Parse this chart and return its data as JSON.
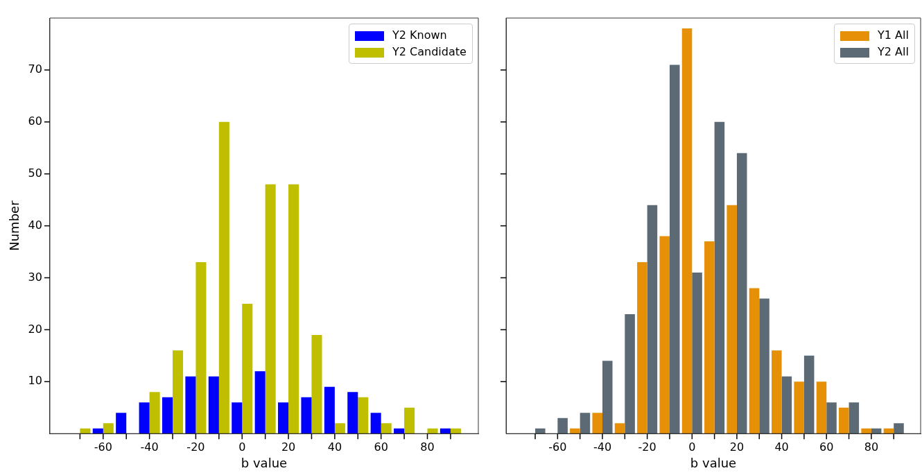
{
  "chart_data": [
    {
      "type": "histogram",
      "xlabel": "b value",
      "ylabel": "Number",
      "bins": [
        -75,
        -65,
        -55,
        -45,
        -35,
        -25,
        -15,
        -5,
        5,
        15,
        25,
        35,
        45,
        55,
        65,
        75,
        85,
        95
      ],
      "series": [
        {
          "name": "Y2 Known",
          "color": "#0000ff",
          "values": [
            0,
            1,
            4,
            6,
            7,
            11,
            11,
            6,
            12,
            6,
            7,
            9,
            8,
            4,
            1,
            0,
            1
          ]
        },
        {
          "name": "Y2 Candidate",
          "color": "#bfbf00",
          "values": [
            1,
            2,
            0,
            8,
            16,
            33,
            60,
            25,
            48,
            48,
            19,
            2,
            7,
            2,
            5,
            1,
            1
          ]
        }
      ],
      "xlim": [
        -83,
        102
      ],
      "ylim": [
        0,
        80
      ],
      "xticks": [
        {
          "value": -70,
          "label": null
        },
        -60,
        {
          "value": -50,
          "label": null
        },
        -40,
        {
          "value": -30,
          "label": null
        },
        -20,
        {
          "value": -10,
          "label": null
        },
        0,
        {
          "value": 10,
          "label": null
        },
        20,
        {
          "value": 30,
          "label": null
        },
        40,
        {
          "value": 50,
          "label": null
        },
        60,
        {
          "value": 70,
          "label": null
        },
        80,
        {
          "value": 90,
          "label": null
        }
      ],
      "yticks": [
        10,
        20,
        30,
        40,
        50,
        60,
        70
      ],
      "legend": "top right"
    },
    {
      "type": "histogram",
      "xlabel": "b value",
      "bins": [
        -75,
        -65,
        -55,
        -45,
        -35,
        -25,
        -15,
        -5,
        5,
        15,
        25,
        35,
        45,
        55,
        65,
        75,
        85,
        95
      ],
      "series": [
        {
          "name": "Y1 All",
          "color": "#e69008",
          "values": [
            0,
            0,
            1,
            4,
            2,
            33,
            38,
            78,
            37,
            44,
            28,
            16,
            10,
            10,
            5,
            1,
            1
          ]
        },
        {
          "name": "Y2 All",
          "color": "#5b6a74",
          "values": [
            1,
            3,
            4,
            14,
            23,
            44,
            71,
            31,
            60,
            54,
            26,
            11,
            15,
            6,
            6,
            1,
            2
          ]
        }
      ],
      "xlim": [
        -83,
        102
      ],
      "ylim": [
        0,
        80
      ],
      "xticks": [
        {
          "value": -70,
          "label": null
        },
        -60,
        {
          "value": -50,
          "label": null
        },
        -40,
        {
          "value": -30,
          "label": null
        },
        -20,
        {
          "value": -10,
          "label": null
        },
        0,
        {
          "value": 10,
          "label": null
        },
        20,
        {
          "value": 30,
          "label": null
        },
        40,
        {
          "value": 50,
          "label": null
        },
        60,
        {
          "value": 70,
          "label": null
        },
        80,
        {
          "value": 90,
          "label": null
        }
      ],
      "yticks": [
        10,
        20,
        30,
        40,
        50,
        60,
        70
      ],
      "legend": "top right",
      "tick_labels": "x"
    }
  ]
}
